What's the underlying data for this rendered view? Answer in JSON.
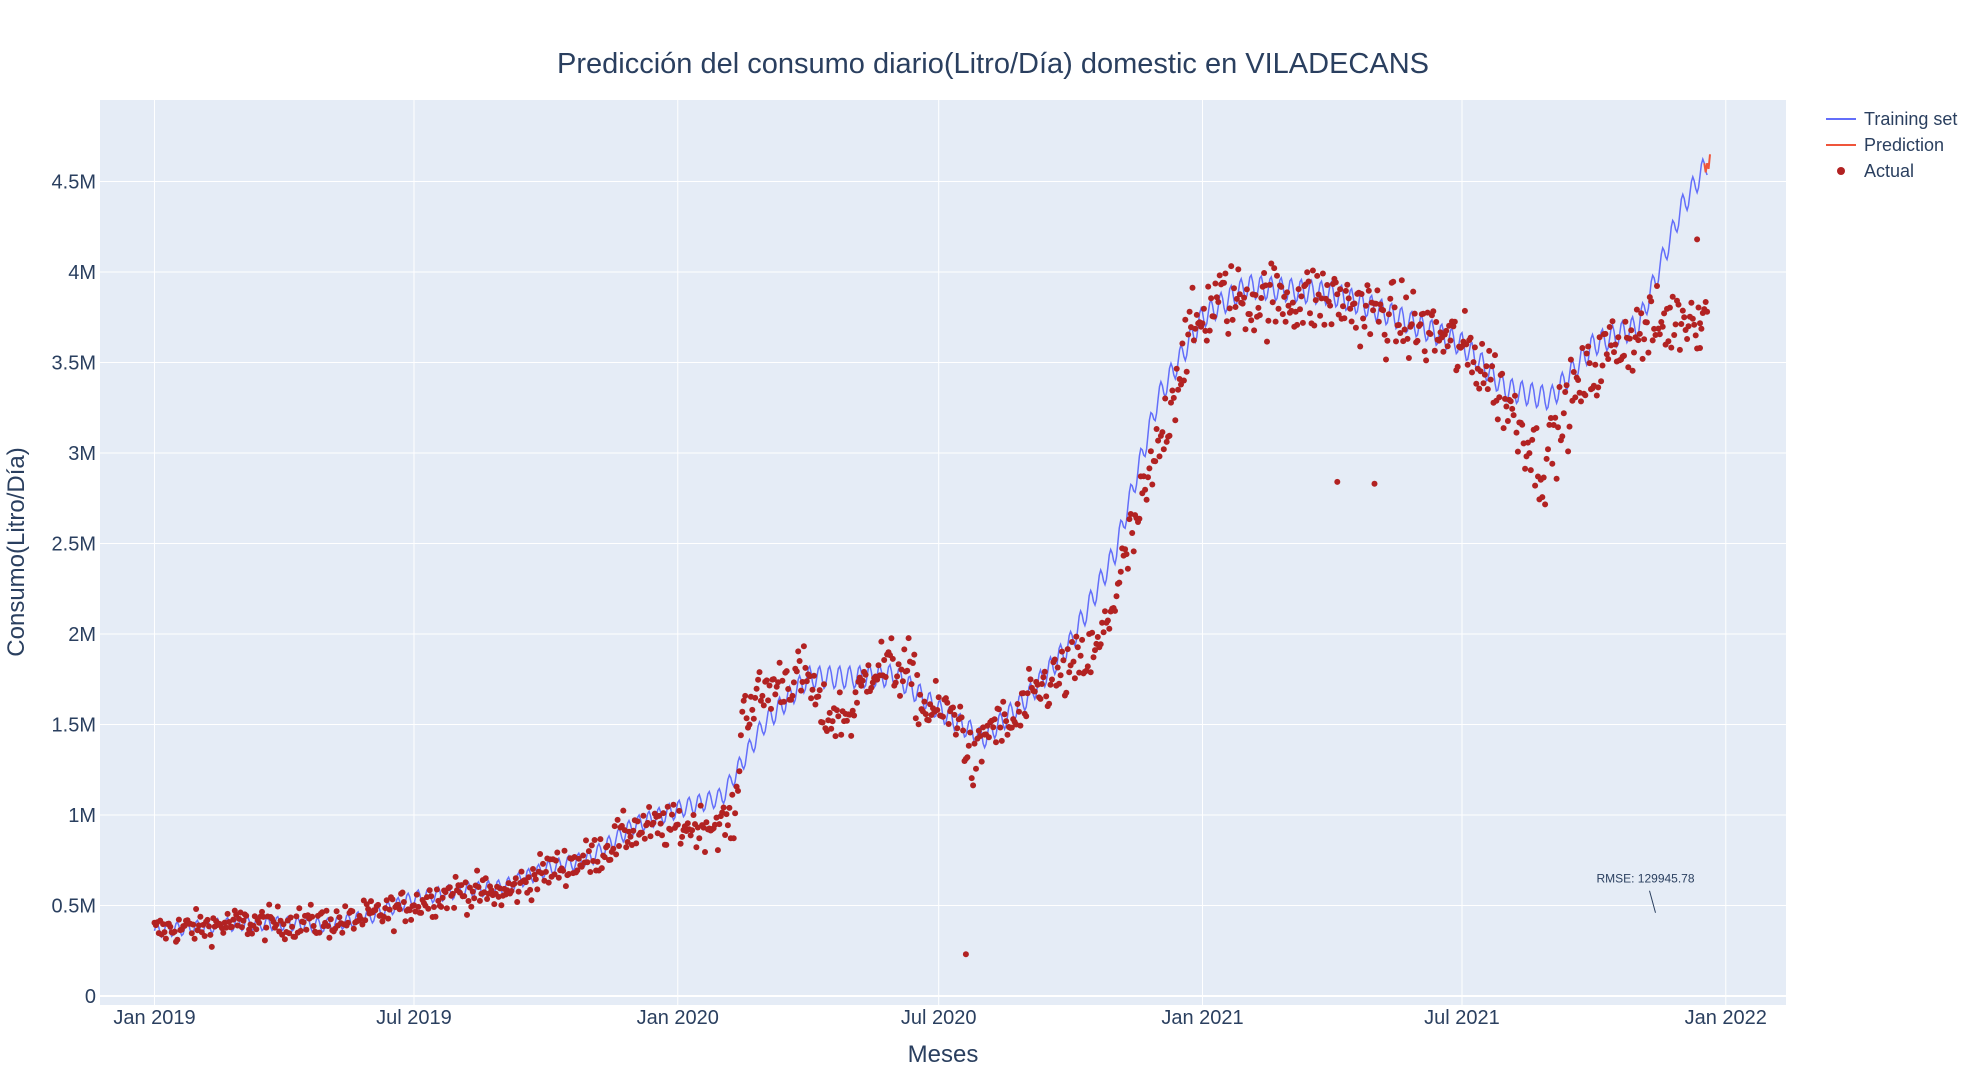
{
  "colors": {
    "plot_bg": "#e5ecf6",
    "grid": "#ffffff",
    "text": "#2a3f5f",
    "training": "#636efa",
    "prediction": "#ef553b",
    "actual": "#b22222"
  },
  "chart_data": {
    "type": "line",
    "title": "Predicción del consumo diario(Litro/Día) domestic en VILADECANS",
    "xlabel": "Meses",
    "ylabel": "Consumo(Litro/Día)",
    "x_range": [
      "2018-11-24",
      "2022-02-12"
    ],
    "y_range": [
      -50000,
      4950000
    ],
    "x_ticks": [
      {
        "date": "2019-01-01",
        "label": "Jan 2019"
      },
      {
        "date": "2019-07-01",
        "label": "Jul 2019"
      },
      {
        "date": "2020-01-01",
        "label": "Jan 2020"
      },
      {
        "date": "2020-07-01",
        "label": "Jul 2020"
      },
      {
        "date": "2021-01-01",
        "label": "Jan 2021"
      },
      {
        "date": "2021-07-01",
        "label": "Jul 2021"
      },
      {
        "date": "2022-01-01",
        "label": "Jan 2022"
      }
    ],
    "y_ticks": [
      {
        "value": 0,
        "label": "0"
      },
      {
        "value": 500000,
        "label": "0.5M"
      },
      {
        "value": 1000000,
        "label": "1M"
      },
      {
        "value": 1500000,
        "label": "1.5M"
      },
      {
        "value": 2000000,
        "label": "2M"
      },
      {
        "value": 2500000,
        "label": "2.5M"
      },
      {
        "value": 3000000,
        "label": "3M"
      },
      {
        "value": 3500000,
        "label": "3.5M"
      },
      {
        "value": 4000000,
        "label": "4M"
      },
      {
        "value": 4500000,
        "label": "4.5M"
      }
    ],
    "legend_position": "top-right",
    "grid": true,
    "series": [
      {
        "name": "Training set",
        "kind": "line",
        "weekly_amplitude": 55000,
        "trend": [
          [
            "2019-01-01",
            360000
          ],
          [
            "2019-02-01",
            380000
          ],
          [
            "2019-03-01",
            400000
          ],
          [
            "2019-04-01",
            400000
          ],
          [
            "2019-05-01",
            390000
          ],
          [
            "2019-06-01",
            440000
          ],
          [
            "2019-07-01",
            540000
          ],
          [
            "2019-08-01",
            580000
          ],
          [
            "2019-09-01",
            600000
          ],
          [
            "2019-10-01",
            700000
          ],
          [
            "2019-11-01",
            760000
          ],
          [
            "2019-12-01",
            940000
          ],
          [
            "2020-01-01",
            1030000
          ],
          [
            "2020-02-01",
            1100000
          ],
          [
            "2020-03-01",
            1500000
          ],
          [
            "2020-04-01",
            1760000
          ],
          [
            "2020-05-01",
            1760000
          ],
          [
            "2020-06-01",
            1770000
          ],
          [
            "2020-07-01",
            1580000
          ],
          [
            "2020-08-01",
            1420000
          ],
          [
            "2020-09-01",
            1650000
          ],
          [
            "2020-10-01",
            1950000
          ],
          [
            "2020-11-01",
            2450000
          ],
          [
            "2020-12-01",
            3300000
          ],
          [
            "2021-01-01",
            3750000
          ],
          [
            "2021-02-01",
            3920000
          ],
          [
            "2021-03-01",
            3900000
          ],
          [
            "2021-04-01",
            3880000
          ],
          [
            "2021-05-01",
            3800000
          ],
          [
            "2021-06-01",
            3700000
          ],
          [
            "2021-07-01",
            3600000
          ],
          [
            "2021-08-01",
            3350000
          ],
          [
            "2021-09-01",
            3300000
          ],
          [
            "2021-10-01",
            3600000
          ],
          [
            "2021-11-01",
            3700000
          ],
          [
            "2021-12-01",
            4350000
          ],
          [
            "2021-12-19",
            4600000
          ]
        ]
      },
      {
        "name": "Prediction",
        "kind": "line",
        "points": [
          [
            "2021-12-17",
            4600000
          ],
          [
            "2021-12-18",
            4550000
          ],
          [
            "2021-12-19",
            4600000
          ],
          [
            "2021-12-20",
            4570000
          ],
          [
            "2021-12-21",
            4650000
          ]
        ]
      },
      {
        "name": "Actual",
        "kind": "markers",
        "scatter": 75000,
        "trend": [
          [
            "2019-01-01",
            360000
          ],
          [
            "2019-03-01",
            400000
          ],
          [
            "2019-05-15",
            410000
          ],
          [
            "2019-06-15",
            470000
          ],
          [
            "2019-08-01",
            580000
          ],
          [
            "2019-09-01",
            560000
          ],
          [
            "2019-10-01",
            690000
          ],
          [
            "2019-11-01",
            760000
          ],
          [
            "2019-12-01",
            920000
          ],
          [
            "2020-01-15",
            940000
          ],
          [
            "2020-02-10",
            960000
          ],
          [
            "2020-02-15",
            1580000
          ],
          [
            "2020-03-15",
            1750000
          ],
          [
            "2020-04-01",
            1760000
          ],
          [
            "2020-04-10",
            1550000
          ],
          [
            "2020-05-01",
            1550000
          ],
          [
            "2020-05-15",
            1830000
          ],
          [
            "2020-06-10",
            1800000
          ],
          [
            "2020-06-20",
            1590000
          ],
          [
            "2020-07-15",
            1550000
          ],
          [
            "2020-07-25",
            1250000
          ],
          [
            "2020-08-05",
            1500000
          ],
          [
            "2020-08-20",
            1480000
          ],
          [
            "2020-09-10",
            1700000
          ],
          [
            "2020-10-01",
            1800000
          ],
          [
            "2020-10-20",
            1900000
          ],
          [
            "2020-11-10",
            2450000
          ],
          [
            "2020-12-01",
            3000000
          ],
          [
            "2020-12-20",
            3600000
          ],
          [
            "2021-01-10",
            3850000
          ],
          [
            "2021-02-15",
            3850000
          ],
          [
            "2021-04-01",
            3850000
          ],
          [
            "2021-05-10",
            3750000
          ],
          [
            "2021-06-15",
            3650000
          ],
          [
            "2021-07-15",
            3500000
          ],
          [
            "2021-08-15",
            3100000
          ],
          [
            "2021-08-25",
            2900000
          ],
          [
            "2021-09-15",
            3300000
          ],
          [
            "2021-10-15",
            3600000
          ],
          [
            "2021-11-15",
            3700000
          ],
          [
            "2021-12-19",
            3800000
          ]
        ],
        "outliers": [
          [
            "2020-07-20",
            230000
          ],
          [
            "2021-04-05",
            2840000
          ],
          [
            "2021-05-01",
            2830000
          ],
          [
            "2021-12-12",
            4180000
          ],
          [
            "2021-12-14",
            3580000
          ]
        ]
      }
    ],
    "annotations": [
      {
        "text": "RMSE: 129945.78",
        "date": "2021-11-06",
        "value": 460000
      }
    ]
  }
}
